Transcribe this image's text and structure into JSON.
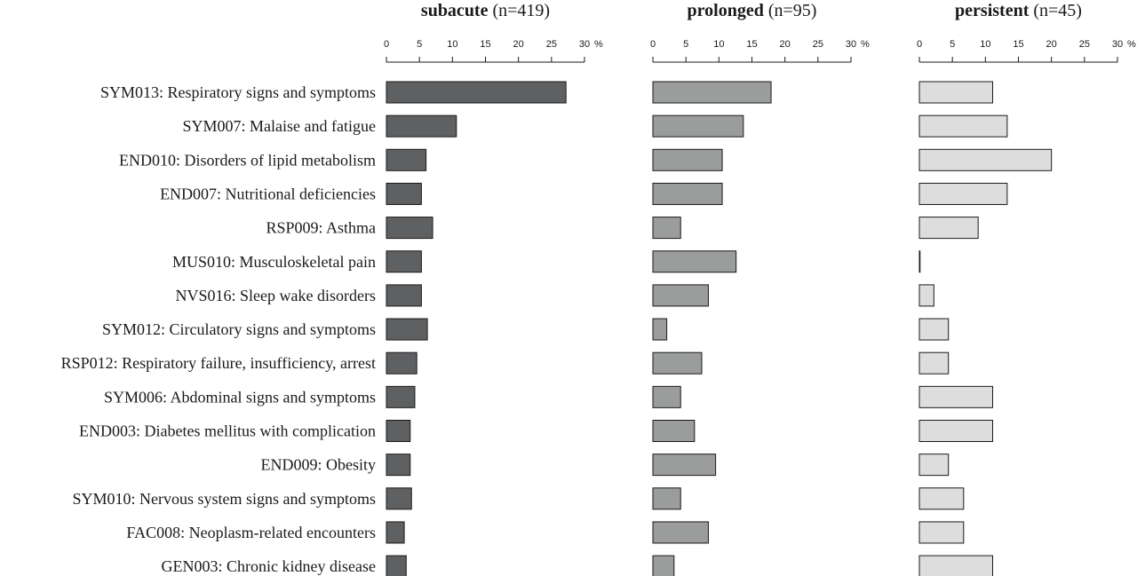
{
  "chart_data": {
    "type": "bar",
    "orientation": "horizontal",
    "categories": [
      "SYM013: Respiratory signs and symptoms",
      "SYM007: Malaise and fatigue",
      "END010: Disorders of lipid metabolism",
      "END007: Nutritional deficiencies",
      "RSP009: Asthma",
      "MUS010: Musculoskeletal pain",
      "NVS016: Sleep wake disorders",
      "SYM012: Circulatory signs and symptoms",
      "RSP012: Respiratory failure, insufficiency, arrest",
      "SYM006: Abdominal signs and symptoms",
      "END003: Diabetes mellitus with complication",
      "END009: Obesity",
      "SYM010: Nervous system signs and symptoms",
      "FAC008: Neoplasm-related encounters",
      "GEN003: Chronic kidney disease"
    ],
    "xlim": [
      0,
      30
    ],
    "ticks": [
      0,
      5,
      10,
      15,
      20,
      25,
      30
    ],
    "unit": "%",
    "grid": false,
    "series": [
      {
        "name": "subacute",
        "n_label": "(n=419)",
        "color": "#5f6061",
        "values": [
          27.2,
          10.6,
          6.0,
          5.3,
          7.0,
          5.3,
          5.3,
          6.2,
          4.6,
          4.3,
          3.6,
          3.6,
          3.8,
          2.7,
          3.0
        ]
      },
      {
        "name": "prolonged",
        "n_label": "(n=95)",
        "color": "#9b9c9c",
        "values": [
          17.9,
          13.7,
          10.5,
          10.5,
          4.2,
          12.6,
          8.4,
          2.1,
          7.4,
          4.2,
          6.3,
          9.5,
          4.2,
          8.4,
          3.2
        ]
      },
      {
        "name": "persistent",
        "n_label": "(n=45)",
        "color": "#dcdddc",
        "values": [
          11.1,
          13.3,
          20.0,
          13.3,
          8.9,
          0.1,
          2.2,
          4.4,
          4.4,
          11.1,
          11.1,
          4.4,
          6.7,
          6.7,
          11.1
        ]
      }
    ]
  }
}
